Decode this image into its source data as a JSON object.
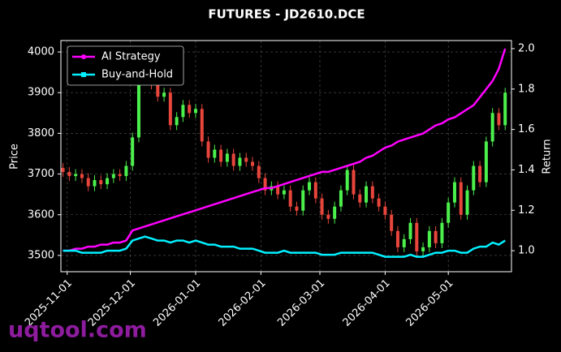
{
  "chart_data": {
    "type": "candlestick",
    "title": "FUTURES - JD2610.DCE",
    "y_label": "Price",
    "y2_label": "Return",
    "x": [
      "2025-10-30",
      "2025-11-02",
      "2025-11-05",
      "2025-11-08",
      "2025-11-11",
      "2025-11-14",
      "2025-11-17",
      "2025-11-20",
      "2025-11-23",
      "2025-11-26",
      "2025-11-29",
      "2025-12-02",
      "2025-12-05",
      "2025-12-08",
      "2025-12-11",
      "2025-12-14",
      "2025-12-17",
      "2025-12-20",
      "2025-12-23",
      "2025-12-26",
      "2025-12-29",
      "2026-01-01",
      "2026-01-04",
      "2026-01-07",
      "2026-01-10",
      "2026-01-13",
      "2026-01-16",
      "2026-01-19",
      "2026-01-22",
      "2026-01-25",
      "2026-01-28",
      "2026-01-31",
      "2026-02-03",
      "2026-02-06",
      "2026-02-09",
      "2026-02-12",
      "2026-02-15",
      "2026-02-18",
      "2026-02-21",
      "2026-02-24",
      "2026-02-27",
      "2026-03-02",
      "2026-03-05",
      "2026-03-08",
      "2026-03-11",
      "2026-03-14",
      "2026-03-17",
      "2026-03-20",
      "2026-03-23",
      "2026-03-26",
      "2026-03-29",
      "2026-04-01",
      "2026-04-04",
      "2026-04-07",
      "2026-04-10",
      "2026-04-13",
      "2026-04-16",
      "2026-04-19",
      "2026-04-22",
      "2026-04-25",
      "2026-04-28",
      "2026-05-01",
      "2026-05-04",
      "2026-05-07",
      "2026-05-10",
      "2026-05-13",
      "2026-05-16",
      "2026-05-19",
      "2026-05-22",
      "2026-05-25",
      "2026-05-28"
    ],
    "open": [
      3715,
      3705,
      3695,
      3700,
      3690,
      3670,
      3685,
      3675,
      3690,
      3700,
      3695,
      3720,
      3790,
      3930,
      3970,
      3920,
      3890,
      3900,
      3820,
      3840,
      3870,
      3850,
      3860,
      3780,
      3740,
      3760,
      3730,
      3750,
      3720,
      3740,
      3730,
      3720,
      3690,
      3660,
      3670,
      3650,
      3660,
      3620,
      3610,
      3660,
      3680,
      3640,
      3600,
      3590,
      3620,
      3660,
      3710,
      3650,
      3630,
      3670,
      3640,
      3620,
      3600,
      3560,
      3520,
      3540,
      3580,
      3510,
      3520,
      3560,
      3530,
      3580,
      3630,
      3680,
      3600,
      3660,
      3720,
      3680,
      3780,
      3850,
      3820
    ],
    "high": [
      3727,
      3717,
      3712,
      3712,
      3702,
      3697,
      3697,
      3702,
      3712,
      3712,
      3732,
      3802,
      3942,
      3982,
      3982,
      3932,
      3912,
      3912,
      3852,
      3882,
      3882,
      3872,
      3872,
      3792,
      3772,
      3772,
      3762,
      3762,
      3752,
      3752,
      3742,
      3732,
      3702,
      3682,
      3682,
      3672,
      3672,
      3632,
      3672,
      3692,
      3692,
      3652,
      3612,
      3632,
      3672,
      3722,
      3722,
      3662,
      3682,
      3682,
      3652,
      3632,
      3612,
      3572,
      3552,
      3592,
      3592,
      3532,
      3572,
      3572,
      3592,
      3642,
      3692,
      3692,
      3672,
      3732,
      3732,
      3792,
      3862,
      3862,
      3912
    ],
    "low": [
      3693,
      3683,
      3683,
      3678,
      3658,
      3658,
      3663,
      3663,
      3678,
      3683,
      3683,
      3708,
      3778,
      3918,
      3908,
      3878,
      3878,
      3808,
      3808,
      3828,
      3838,
      3838,
      3768,
      3728,
      3728,
      3718,
      3718,
      3708,
      3708,
      3718,
      3708,
      3678,
      3648,
      3648,
      3638,
      3638,
      3608,
      3598,
      3598,
      3648,
      3628,
      3588,
      3578,
      3578,
      3608,
      3648,
      3638,
      3618,
      3618,
      3628,
      3608,
      3588,
      3548,
      3508,
      3508,
      3528,
      3498,
      3498,
      3508,
      3518,
      3518,
      3568,
      3618,
      3588,
      3588,
      3648,
      3668,
      3668,
      3768,
      3808,
      3808
    ],
    "close": [
      3705,
      3695,
      3700,
      3690,
      3670,
      3685,
      3675,
      3690,
      3700,
      3695,
      3720,
      3790,
      3930,
      3970,
      3920,
      3890,
      3900,
      3820,
      3840,
      3870,
      3850,
      3860,
      3780,
      3740,
      3760,
      3730,
      3750,
      3720,
      3740,
      3730,
      3720,
      3690,
      3660,
      3670,
      3650,
      3660,
      3620,
      3610,
      3660,
      3680,
      3640,
      3600,
      3590,
      3620,
      3660,
      3710,
      3650,
      3630,
      3670,
      3640,
      3620,
      3600,
      3560,
      3520,
      3540,
      3580,
      3510,
      3520,
      3560,
      3530,
      3580,
      3630,
      3680,
      3600,
      3660,
      3720,
      3680,
      3780,
      3850,
      3820,
      3900
    ],
    "up_color": "#4cf04c",
    "down_color": "#e8453c",
    "series": [
      {
        "name": "AI Strategy",
        "color": "#ff00ff",
        "axis": "y2",
        "marker": "circle",
        "values": [
          1.0,
          1.0,
          1.01,
          1.01,
          1.02,
          1.02,
          1.03,
          1.03,
          1.04,
          1.04,
          1.05,
          1.1,
          1.11,
          1.12,
          1.13,
          1.14,
          1.15,
          1.16,
          1.17,
          1.18,
          1.19,
          1.2,
          1.21,
          1.22,
          1.23,
          1.24,
          1.25,
          1.26,
          1.27,
          1.28,
          1.29,
          1.3,
          1.31,
          1.31,
          1.32,
          1.33,
          1.34,
          1.35,
          1.36,
          1.37,
          1.38,
          1.39,
          1.39,
          1.4,
          1.41,
          1.42,
          1.43,
          1.44,
          1.46,
          1.47,
          1.49,
          1.51,
          1.52,
          1.54,
          1.55,
          1.56,
          1.57,
          1.58,
          1.6,
          1.62,
          1.63,
          1.65,
          1.66,
          1.68,
          1.7,
          1.72,
          1.76,
          1.8,
          1.84,
          1.9,
          2.0
        ]
      },
      {
        "name": "Buy-and-Hold",
        "color": "#00f0ff",
        "axis": "y2",
        "marker": "square",
        "values": [
          1.0,
          1.0,
          1.0,
          0.99,
          0.99,
          0.99,
          0.99,
          1.0,
          1.0,
          1.0,
          1.01,
          1.05,
          1.06,
          1.07,
          1.06,
          1.05,
          1.05,
          1.04,
          1.05,
          1.05,
          1.04,
          1.05,
          1.04,
          1.03,
          1.03,
          1.02,
          1.02,
          1.02,
          1.01,
          1.01,
          1.01,
          1.0,
          0.99,
          0.99,
          0.99,
          1.0,
          0.99,
          0.99,
          0.99,
          0.99,
          0.99,
          0.98,
          0.98,
          0.98,
          0.99,
          0.99,
          0.99,
          0.99,
          0.99,
          0.99,
          0.98,
          0.97,
          0.97,
          0.97,
          0.97,
          0.98,
          0.97,
          0.97,
          0.98,
          0.99,
          0.99,
          1.0,
          1.0,
          0.99,
          0.99,
          1.01,
          1.02,
          1.02,
          1.04,
          1.03,
          1.05
        ]
      }
    ],
    "xlim": [
      "2025-10-29",
      "2026-05-31"
    ],
    "xticks": [
      "2025-11-01",
      "2025-12-01",
      "2026-01-01",
      "2026-02-01",
      "2026-03-01",
      "2026-04-01",
      "2026-05-01"
    ],
    "ylim": [
      3460,
      4028
    ],
    "yticks": [
      3500,
      3600,
      3700,
      3800,
      3900,
      4000
    ],
    "y2lim": [
      0.896,
      2.04
    ],
    "y2ticks": [
      {
        "value": 1,
        "label": "1.0"
      },
      1.2,
      1.4,
      1.6,
      1.8,
      {
        "value": 2,
        "label": "2.0"
      }
    ],
    "grid": true,
    "legend": "upper left"
  },
  "watermark": "uqtool.com"
}
